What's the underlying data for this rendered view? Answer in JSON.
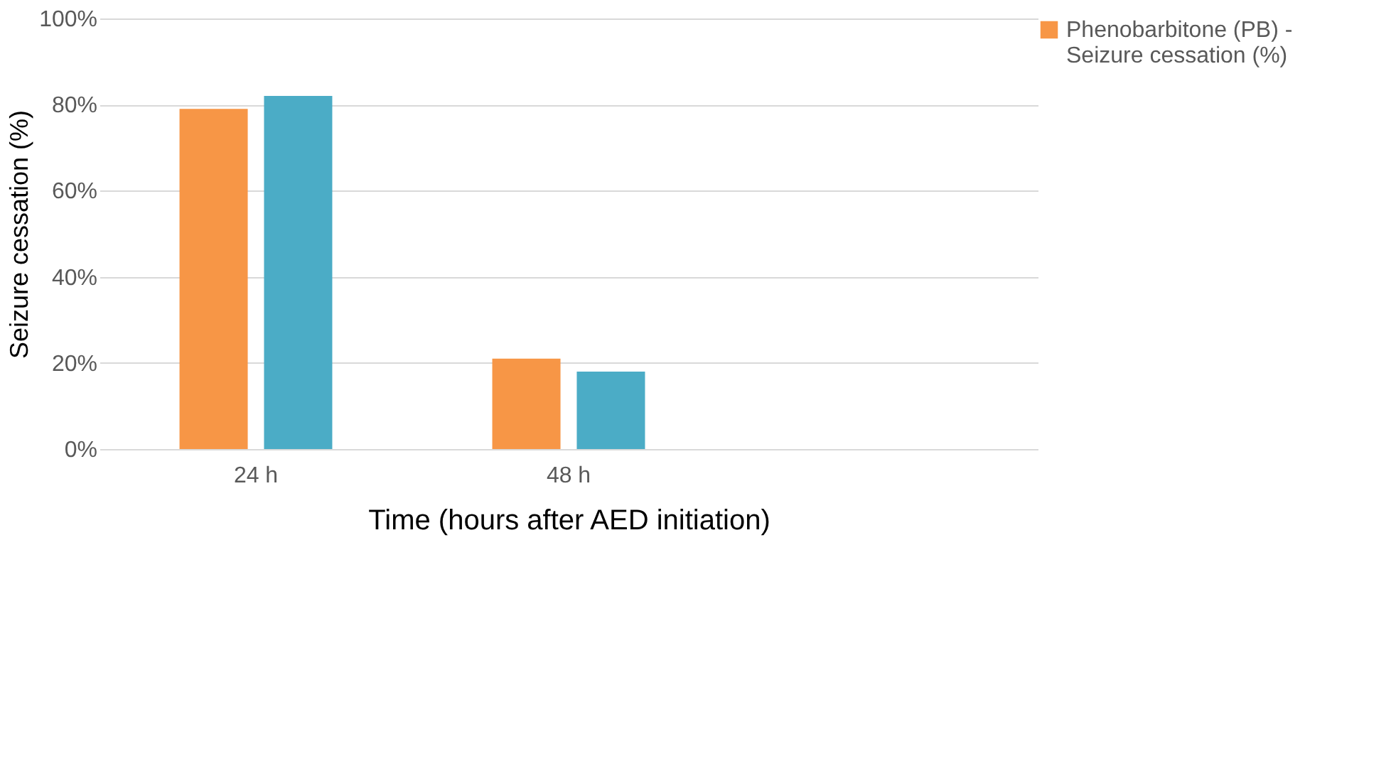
{
  "chart_data": {
    "type": "bar",
    "xlabel": "Time (hours after AED initiation)",
    "ylabel": "Seizure cessation (%)",
    "categories": [
      "24 h",
      "48 h",
      null
    ],
    "series": [
      {
        "name": "Phenobarbitone (PB) -\nSeizure cessation (%)",
        "color": "#f79646",
        "values": [
          79,
          21,
          null
        ]
      },
      {
        "color": "#4bacc6",
        "values": [
          82,
          18,
          null
        ]
      }
    ],
    "ylim": [
      0,
      100
    ],
    "yticks": [
      {
        "value": 0,
        "label": "0%"
      },
      {
        "value": 20,
        "label": "20%"
      },
      {
        "value": 40,
        "label": "40%"
      },
      {
        "value": 60,
        "label": "60%"
      },
      {
        "value": 80,
        "label": "80%"
      },
      {
        "value": 100,
        "label": "100%"
      }
    ],
    "grid": "y",
    "legend": "top right"
  }
}
